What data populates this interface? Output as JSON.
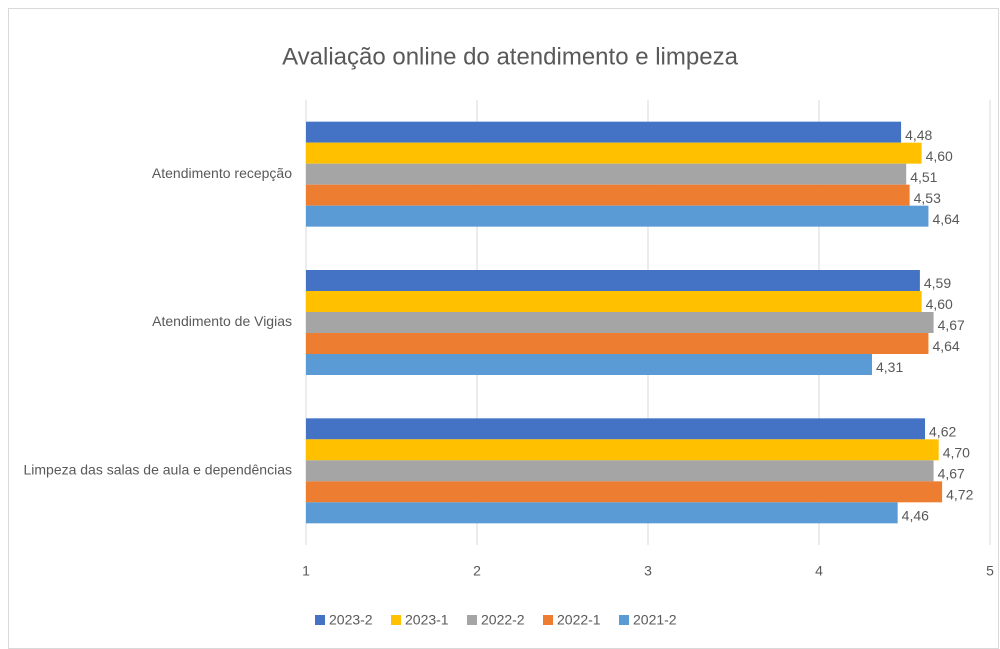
{
  "chart_data": {
    "type": "hbar",
    "title": "Avaliação online  do atendimento e limpeza",
    "categories": [
      "Atendimento recepção",
      "Atendimento de Vigias",
      "Limpeza das salas de aula e dependências"
    ],
    "series": [
      {
        "name": "2023-2",
        "color": "#4472c4",
        "values": [
          4.48,
          4.59,
          4.62
        ],
        "value_labels": [
          "4,48",
          "4,59",
          "4,62"
        ]
      },
      {
        "name": "2023-1",
        "color": "#ffc000",
        "values": [
          4.6,
          4.6,
          4.7
        ],
        "value_labels": [
          "4,60",
          "4,60",
          "4,70"
        ]
      },
      {
        "name": "2022-2",
        "color": "#a5a5a5",
        "values": [
          4.51,
          4.67,
          4.67
        ],
        "value_labels": [
          "4,51",
          "4,67",
          "4,67"
        ]
      },
      {
        "name": "2022-1",
        "color": "#ed7d31",
        "values": [
          4.53,
          4.64,
          4.72
        ],
        "value_labels": [
          "4,53",
          "4,64",
          "4,72"
        ]
      },
      {
        "name": "2021-2",
        "color": "#5b9bd5",
        "values": [
          4.64,
          4.31,
          4.46
        ],
        "value_labels": [
          "4,64",
          "4,31",
          "4,46"
        ]
      }
    ],
    "xlim": [
      1,
      5
    ],
    "xticks": [
      1,
      2,
      3,
      4,
      5
    ],
    "grid": true,
    "legend": "bottom"
  }
}
